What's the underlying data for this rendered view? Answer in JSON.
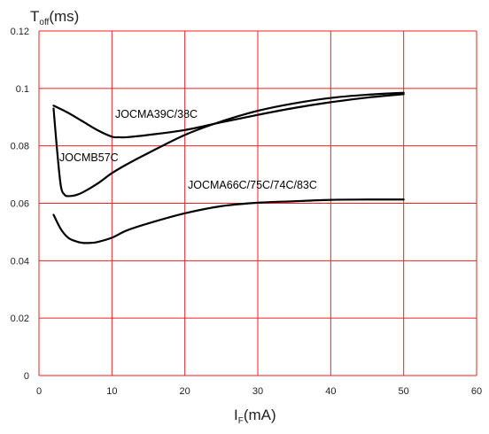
{
  "chart_data": {
    "type": "line",
    "ylabel": {
      "main": "T",
      "sub": "off",
      "unit": "(ms)"
    },
    "xlabel": {
      "main": "I",
      "sub": "F",
      "unit": "(mA)"
    },
    "xlim": [
      0,
      60
    ],
    "ylim": [
      0,
      0.12
    ],
    "x_ticks": [
      0,
      10,
      20,
      30,
      40,
      50,
      60
    ],
    "x_tick_labels": [
      "0",
      "10",
      "20",
      "30",
      "40",
      "50",
      "60"
    ],
    "y_ticks": [
      0,
      0.02,
      0.04,
      0.06,
      0.08,
      0.1,
      0.12
    ],
    "y_tick_labels": [
      "0",
      "0.02",
      "0.04",
      "0.06",
      "0.08",
      "0.1",
      "0.12"
    ],
    "grid": true,
    "grid_color": "#ee2222",
    "line_color": "#000000",
    "series": [
      {
        "name": "JOCMA39C/38C",
        "x": [
          2,
          4,
          6,
          8,
          10,
          11,
          12,
          15,
          20,
          25,
          30,
          35,
          40,
          45,
          50
        ],
        "y": [
          0.094,
          0.0915,
          0.0885,
          0.0855,
          0.0832,
          0.083,
          0.083,
          0.0838,
          0.0855,
          0.0882,
          0.0908,
          0.0932,
          0.0952,
          0.0968,
          0.098
        ]
      },
      {
        "name": "JOCMB57C",
        "x": [
          2,
          2.5,
          3,
          3.5,
          4,
          5,
          6,
          8,
          10,
          12,
          15,
          20,
          25,
          30,
          35,
          40,
          45,
          50
        ],
        "y": [
          0.093,
          0.078,
          0.066,
          0.063,
          0.0625,
          0.0628,
          0.0638,
          0.0668,
          0.0705,
          0.0735,
          0.0775,
          0.0838,
          0.0885,
          0.0922,
          0.0948,
          0.0967,
          0.0978,
          0.0985
        ]
      },
      {
        "name": "JOCMA66C/75C/74C/83C",
        "x": [
          2,
          3,
          4,
          5,
          6,
          7,
          8,
          10,
          12,
          15,
          20,
          25,
          30,
          35,
          40,
          45,
          50
        ],
        "y": [
          0.056,
          0.051,
          0.048,
          0.0468,
          0.0462,
          0.0462,
          0.0465,
          0.048,
          0.0505,
          0.053,
          0.0565,
          0.059,
          0.0602,
          0.0607,
          0.0612,
          0.0613,
          0.0613
        ]
      }
    ]
  }
}
